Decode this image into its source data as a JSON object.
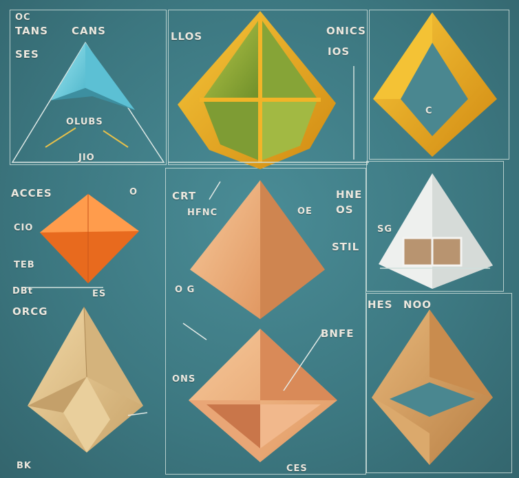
{
  "labels": {
    "p1_oc": "OC",
    "p1_tans": "TANS",
    "p1_cans": "CANS",
    "p1_ses": "SES",
    "p1_olubs": "OLUBS",
    "p1_jio": "JIO",
    "p2_llos": "LLOS",
    "p2_onics": "ONICS",
    "p2_ios": "IOS",
    "p3_c": "C",
    "p4_acces": "ACCES",
    "p4_o": "O",
    "p4_cio": "CIO",
    "p4_teb": "TEB",
    "p4_dbt": "DBt",
    "p4_es": "ES",
    "p4_orcg": "ORCG",
    "p5_crt": "CRT",
    "p5_hfnc": "HFNC",
    "p5_oe": "OE",
    "p5_hne": "HNE",
    "p5_os": "OS",
    "p5_stil": "STIL",
    "p5_og": "O G",
    "p6_sg": "SG",
    "p6_hes": "HES",
    "p6_noo": "NOO",
    "p7_bnfe": "BNFE",
    "p7_ons": "ONS",
    "p7_ces": "CES",
    "p8_bk": "BK"
  },
  "colors": {
    "background": "#3f7a84",
    "frame_line": "#cfe0dc",
    "label_text": "#ece8df",
    "cyan": "#7fd6e6",
    "gold": "#e9a81f",
    "green": "#9bb339",
    "orange": "#f07a28",
    "peach": "#f0b27a",
    "tan": "#e3c48e",
    "wood": "#d9a466",
    "white": "#eef0ee"
  }
}
